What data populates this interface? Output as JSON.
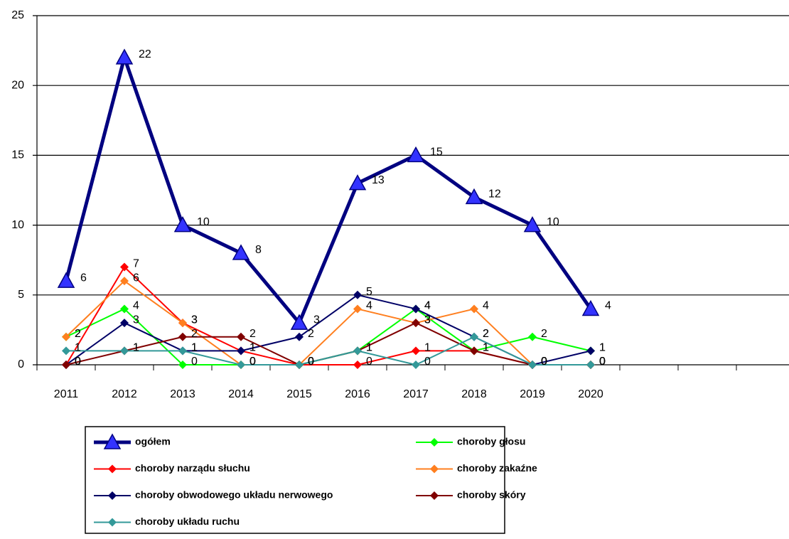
{
  "chart_data": {
    "type": "line",
    "categories": [
      "2011",
      "2012",
      "2013",
      "2014",
      "2015",
      "2016",
      "2017",
      "2018",
      "2019",
      "2020",
      null,
      null,
      null
    ],
    "series": [
      {
        "name": "ogółem",
        "color": "#000080",
        "marker_color": "#3333ff",
        "marker": "triangle",
        "width": 5,
        "values": [
          6,
          22,
          10,
          8,
          3,
          13,
          15,
          12,
          10,
          4,
          null,
          null,
          null
        ]
      },
      {
        "name": "choroby  głosu",
        "color": "#00ff00",
        "marker": "diamond",
        "width": 2,
        "values": [
          2,
          4,
          0,
          0,
          0,
          1,
          4,
          1,
          2,
          1,
          null,
          null,
          null
        ]
      },
      {
        "name": "choroby narządu słuchu",
        "color": "#ff0000",
        "marker": "diamond",
        "width": 2,
        "values": [
          0,
          7,
          3,
          1,
          0,
          0,
          1,
          1,
          0,
          0,
          null,
          null,
          null
        ]
      },
      {
        "name": "choroby zakaźne",
        "color": "#ff7f1f",
        "marker": "diamond",
        "width": 2,
        "values": [
          2,
          6,
          3,
          0,
          0,
          4,
          3,
          4,
          0,
          0,
          null,
          null,
          null
        ]
      },
      {
        "name": "choroby obwodowego układu nerwowego",
        "color": "#000066",
        "marker": "diamond",
        "width": 2,
        "values": [
          0,
          3,
          1,
          1,
          2,
          5,
          4,
          2,
          0,
          1,
          null,
          null,
          null
        ]
      },
      {
        "name": "choroby skóry",
        "color": "#800000",
        "marker": "diamond",
        "width": 2,
        "values": [
          0,
          1,
          2,
          2,
          0,
          1,
          3,
          1,
          0,
          0,
          null,
          null,
          null
        ]
      },
      {
        "name": "choroby układu ruchu",
        "color": "#339999",
        "marker": "diamond",
        "width": 2,
        "values": [
          1,
          1,
          1,
          0,
          0,
          1,
          0,
          2,
          0,
          0,
          null,
          null,
          null
        ]
      }
    ],
    "ylim": [
      0,
      25
    ],
    "yticks": [
      0,
      5,
      10,
      15,
      20,
      25
    ],
    "grid": true,
    "data_labels": true,
    "legend": "bottom"
  }
}
